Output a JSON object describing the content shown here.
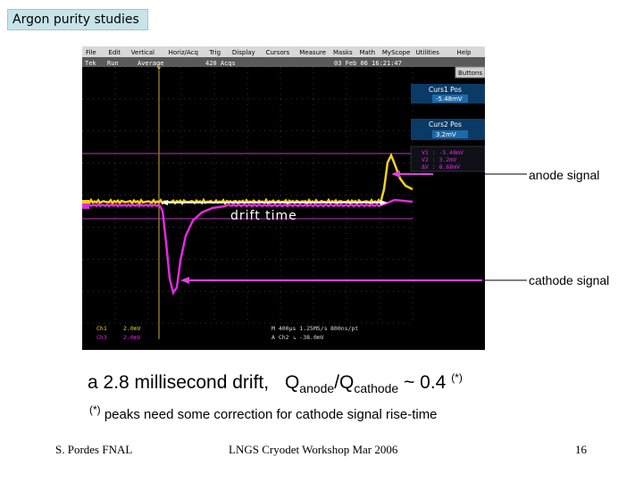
{
  "slide": {
    "title": "Argon purity studies",
    "anode_label": "anode signal",
    "cathode_label": "cathode signal",
    "drift_label": "drift time",
    "main_caption": {
      "prefix": "a 2.8 millisecond drift,",
      "q": "Q",
      "sub_anode": "anode",
      "slash": "/Q",
      "sub_cathode": "cathode",
      "tail": "~ 0.4",
      "sup": "(*)"
    },
    "note": {
      "sup": "(*)",
      "text": "peaks need some correction for cathode signal rise-time"
    },
    "footer": {
      "left": "S. Pordes FNAL",
      "center": "LNGS Cryodet Workshop Mar 2006",
      "page": "16"
    }
  },
  "scope": {
    "menu": [
      "File",
      "Edit",
      "Vertical",
      "Horiz/Acq",
      "Trig",
      "Display",
      "Cursors",
      "Measure",
      "Masks",
      "Math",
      "MyScope",
      "Utilities",
      "Help"
    ],
    "status": {
      "left": "Tek",
      "run": "Run",
      "mode": "Average",
      "acqs": "420 Acqs",
      "date": "03 Feb 06 16:21:47"
    },
    "buttons": {
      "buttons": "Buttons"
    },
    "curs1": {
      "title": "Curs1 Pos",
      "value": "-5.48mV"
    },
    "curs2": {
      "title": "Curs2 Pos",
      "value": "3.2mV"
    },
    "readout": [
      "V1 :  -5.48mV",
      "V2 :   3.2mV",
      "ΔV :  8.68mV"
    ],
    "bottom": {
      "ch1": "Ch1",
      "ch1_scale": "2.0mV",
      "ch3": "Ch3",
      "ch3_scale": "2.0mV",
      "time": "M 400μs 1.25MS/s",
      "trig": "A Ch2 ↘ -38.0mV",
      "pts": "800ns/pt"
    },
    "colors": {
      "ch1": "#f2d21a",
      "ch3": "#e02be0",
      "cursor": "#c040c0",
      "panel": "#0b3a66"
    }
  }
}
